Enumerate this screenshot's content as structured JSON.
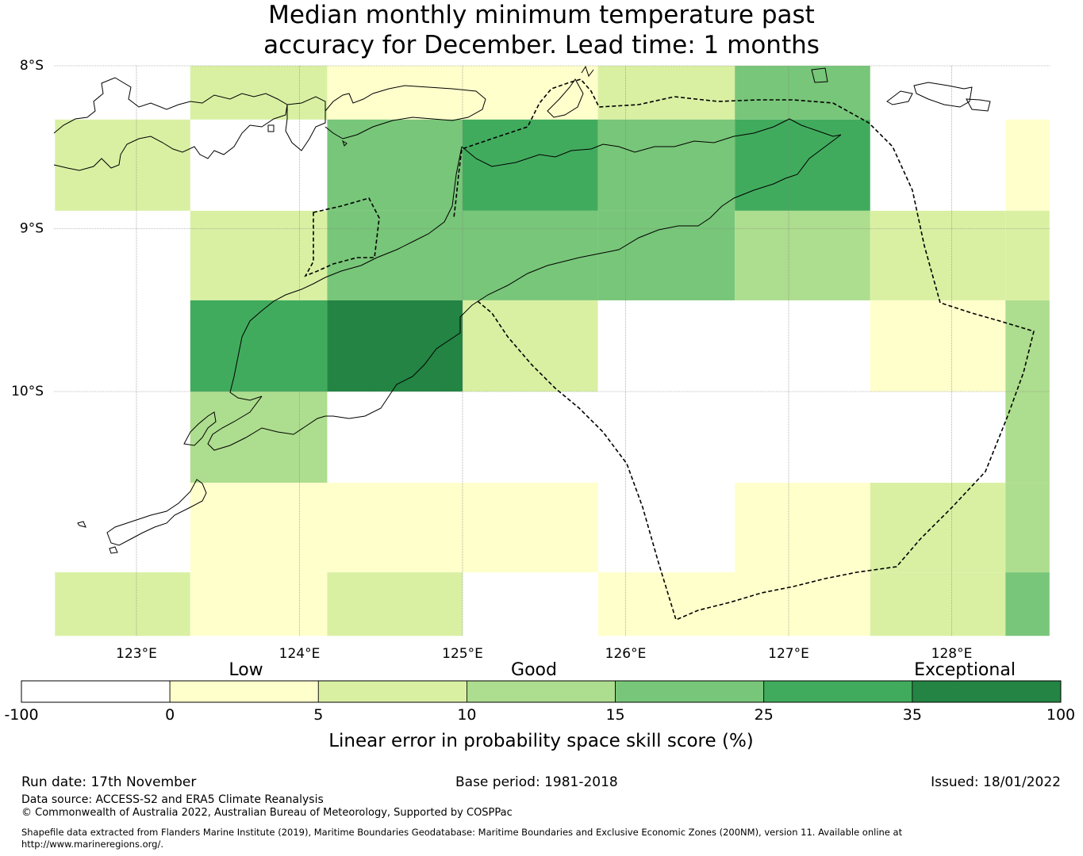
{
  "title": {
    "line1": "Median monthly minimum temperature past",
    "line2": "accuracy for December. Lead time: 1 months"
  },
  "map": {
    "lon_labels": [
      "123°E",
      "124°E",
      "125°E",
      "126°E",
      "127°E",
      "128°E"
    ],
    "lat_labels": [
      "8°S",
      "9°S",
      "10°S"
    ],
    "lon_values": [
      123,
      124,
      125,
      126,
      127,
      128
    ],
    "lat_values": [
      -8,
      -9,
      -10
    ],
    "grid_skill_scores": [
      {
        "lon_min": 123.33,
        "lon_max": 124.17,
        "lat_top": -8.0,
        "lat_bottom": -8.33,
        "value": 7
      },
      {
        "lon_min": 124.17,
        "lon_max": 125.0,
        "lat_top": -8.0,
        "lat_bottom": -8.33,
        "value": 3
      },
      {
        "lon_min": 125.0,
        "lon_max": 125.83,
        "lat_top": -8.0,
        "lat_bottom": -8.33,
        "value": 3
      },
      {
        "lon_min": 125.83,
        "lon_max": 126.67,
        "lat_top": -8.0,
        "lat_bottom": -8.33,
        "value": 7
      },
      {
        "lon_min": 126.67,
        "lon_max": 127.5,
        "lat_top": -8.0,
        "lat_bottom": -8.33,
        "value": 20
      },
      {
        "lon_min": 122.5,
        "lon_max": 123.33,
        "lat_top": -8.33,
        "lat_bottom": -8.89,
        "value": 7
      },
      {
        "lon_min": 124.17,
        "lon_max": 125.0,
        "lat_top": -8.33,
        "lat_bottom": -8.89,
        "value": 20
      },
      {
        "lon_min": 125.0,
        "lon_max": 125.83,
        "lat_top": -8.33,
        "lat_bottom": -8.89,
        "value": 30
      },
      {
        "lon_min": 125.83,
        "lon_max": 126.67,
        "lat_top": -8.33,
        "lat_bottom": -8.89,
        "value": 20
      },
      {
        "lon_min": 126.67,
        "lon_max": 127.5,
        "lat_top": -8.33,
        "lat_bottom": -8.89,
        "value": 30
      },
      {
        "lon_min": 128.33,
        "lon_max": 128.6,
        "lat_top": -8.33,
        "lat_bottom": -8.89,
        "value": 3
      },
      {
        "lon_min": 123.33,
        "lon_max": 124.17,
        "lat_top": -8.89,
        "lat_bottom": -9.44,
        "value": 7
      },
      {
        "lon_min": 124.17,
        "lon_max": 125.0,
        "lat_top": -8.89,
        "lat_bottom": -9.44,
        "value": 20
      },
      {
        "lon_min": 125.0,
        "lon_max": 125.83,
        "lat_top": -8.89,
        "lat_bottom": -9.44,
        "value": 20
      },
      {
        "lon_min": 125.83,
        "lon_max": 126.67,
        "lat_top": -8.89,
        "lat_bottom": -9.44,
        "value": 20
      },
      {
        "lon_min": 126.67,
        "lon_max": 127.5,
        "lat_top": -8.89,
        "lat_bottom": -9.44,
        "value": 12
      },
      {
        "lon_min": 127.5,
        "lon_max": 128.33,
        "lat_top": -8.89,
        "lat_bottom": -9.44,
        "value": 7
      },
      {
        "lon_min": 128.33,
        "lon_max": 128.6,
        "lat_top": -8.89,
        "lat_bottom": -9.44,
        "value": 7
      },
      {
        "lon_min": 123.33,
        "lon_max": 124.17,
        "lat_top": -9.44,
        "lat_bottom": -10.0,
        "value": 30
      },
      {
        "lon_min": 124.17,
        "lon_max": 125.0,
        "lat_top": -9.44,
        "lat_bottom": -10.0,
        "value": 40
      },
      {
        "lon_min": 125.0,
        "lon_max": 125.83,
        "lat_top": -9.44,
        "lat_bottom": -10.0,
        "value": 7
      },
      {
        "lon_min": 127.5,
        "lon_max": 128.33,
        "lat_top": -9.44,
        "lat_bottom": -10.0,
        "value": 3
      },
      {
        "lon_min": 128.33,
        "lon_max": 128.6,
        "lat_top": -9.44,
        "lat_bottom": -10.0,
        "value": 12
      },
      {
        "lon_min": 123.33,
        "lon_max": 124.17,
        "lat_top": -10.0,
        "lat_bottom": -10.56,
        "value": 12
      },
      {
        "lon_min": 128.33,
        "lon_max": 128.6,
        "lat_top": -10.0,
        "lat_bottom": -10.56,
        "value": 12
      },
      {
        "lon_min": 123.33,
        "lon_max": 124.17,
        "lat_top": -10.56,
        "lat_bottom": -11.11,
        "value": 3
      },
      {
        "lon_min": 124.17,
        "lon_max": 125.0,
        "lat_top": -10.56,
        "lat_bottom": -11.11,
        "value": 3
      },
      {
        "lon_min": 125.0,
        "lon_max": 125.83,
        "lat_top": -10.56,
        "lat_bottom": -11.11,
        "value": 3
      },
      {
        "lon_min": 126.67,
        "lon_max": 127.5,
        "lat_top": -10.56,
        "lat_bottom": -11.11,
        "value": 3
      },
      {
        "lon_min": 127.5,
        "lon_max": 128.33,
        "lat_top": -10.56,
        "lat_bottom": -11.11,
        "value": 7
      },
      {
        "lon_min": 128.33,
        "lon_max": 128.6,
        "lat_top": -10.56,
        "lat_bottom": -11.11,
        "value": 12
      },
      {
        "lon_min": 122.5,
        "lon_max": 123.33,
        "lat_top": -11.11,
        "lat_bottom": -11.5,
        "value": 7
      },
      {
        "lon_min": 123.33,
        "lon_max": 124.17,
        "lat_top": -11.11,
        "lat_bottom": -11.5,
        "value": 3
      },
      {
        "lon_min": 124.17,
        "lon_max": 125.0,
        "lat_top": -11.11,
        "lat_bottom": -11.5,
        "value": 7
      },
      {
        "lon_min": 125.83,
        "lon_max": 126.67,
        "lat_top": -11.11,
        "lat_bottom": -11.5,
        "value": 3
      },
      {
        "lon_min": 126.67,
        "lon_max": 127.5,
        "lat_top": -11.11,
        "lat_bottom": -11.5,
        "value": 3
      },
      {
        "lon_min": 127.5,
        "lon_max": 128.33,
        "lat_top": -11.11,
        "lat_bottom": -11.5,
        "value": 7
      },
      {
        "lon_min": 128.33,
        "lon_max": 128.6,
        "lat_top": -11.11,
        "lat_bottom": -11.5,
        "value": 20
      }
    ]
  },
  "colorbar": {
    "category_labels": [
      "Low",
      "Good",
      "Exceptional"
    ],
    "tick_labels": [
      "-100",
      "0",
      "5",
      "10",
      "15",
      "25",
      "35",
      "100"
    ],
    "colors": [
      "#ffffff",
      "#ffffcc",
      "#d9f0a3",
      "#addd8e",
      "#78c679",
      "#41ab5d",
      "#238443"
    ],
    "label": "Linear error in probability space skill score (%)"
  },
  "footer": {
    "run_date": "Run date: 17th November",
    "base_period": "Base period: 1981-2018",
    "issued": "Issued: 18/01/2022",
    "data_source": "Data source: ACCESS-S2 and ERA5 Climate Reanalysis",
    "copyright": "© Commonwealth of Australia 2022, Australian Bureau of Meteorology, Supported by COSPPac",
    "shapefile_line1": "Shapefile data extracted from Flanders Marine Institute (2019), Maritime Boundaries Geodatabase: Maritime Boundaries and Exclusive Economic Zones (200NM), version 11. Available online at",
    "shapefile_line2": "http://www.marineregions.org/."
  }
}
